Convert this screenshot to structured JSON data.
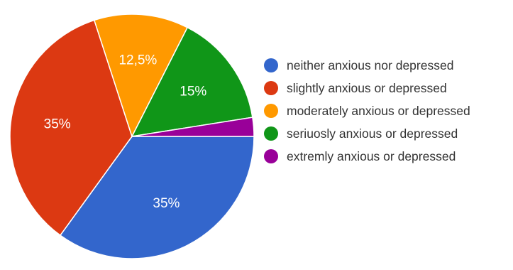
{
  "chart_data": {
    "type": "pie",
    "title": "",
    "slices": [
      {
        "label": "neither anxious nor depressed",
        "value": 35,
        "value_label": "35%",
        "color": "#3366cc"
      },
      {
        "label": "slightly anxious or depressed",
        "value": 35,
        "value_label": "35%",
        "color": "#dc3912"
      },
      {
        "label": "moderately anxious or depressed",
        "value": 12.5,
        "value_label": "12,5%",
        "color": "#ff9900"
      },
      {
        "label": "seriuosly anxious or depressed",
        "value": 15,
        "value_label": "15%",
        "color": "#109618"
      },
      {
        "label": "extremly anxious or depressed",
        "value": 2.5,
        "value_label": "",
        "color": "#990099"
      }
    ],
    "legend_position": "right"
  },
  "legend": {
    "items": [
      {
        "label": "neither anxious nor depressed",
        "color": "#3366cc"
      },
      {
        "label": "slightly anxious or depressed",
        "color": "#dc3912"
      },
      {
        "label": "moderately anxious or depressed",
        "color": "#ff9900"
      },
      {
        "label": "seriuosly anxious or depressed",
        "color": "#109618"
      },
      {
        "label": "extremly anxious or depressed",
        "color": "#990099"
      }
    ]
  }
}
